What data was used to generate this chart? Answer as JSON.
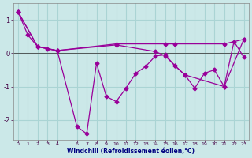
{
  "xlabel": "Windchill (Refroidissement éolien,°C)",
  "background_color": "#cbe8e8",
  "grid_color": "#aad4d4",
  "line_color": "#990099",
  "xlim": [
    -0.5,
    23.5
  ],
  "ylim": [
    -2.6,
    1.5
  ],
  "yticks": [
    -2,
    -1,
    0,
    1
  ],
  "xticks": [
    0,
    1,
    2,
    3,
    4,
    6,
    7,
    8,
    9,
    10,
    11,
    12,
    13,
    14,
    15,
    16,
    17,
    18,
    19,
    20,
    21,
    22,
    23
  ],
  "series1_x": [
    0,
    1,
    2,
    3,
    4,
    6,
    7,
    8,
    9,
    10,
    11,
    12,
    13,
    14,
    15,
    16,
    17,
    18,
    19,
    20,
    21,
    22,
    23
  ],
  "series1_y": [
    1.25,
    0.55,
    0.2,
    0.13,
    0.08,
    -2.2,
    -2.42,
    -0.3,
    -1.3,
    -1.45,
    -1.05,
    -0.6,
    -0.4,
    -0.08,
    -0.05,
    -0.38,
    -0.65,
    -1.05,
    -0.6,
    -0.5,
    -1.0,
    0.35,
    -0.12
  ],
  "series2_x": [
    0,
    2,
    4,
    10,
    15,
    16,
    21,
    23
  ],
  "series2_y": [
    1.25,
    0.2,
    0.08,
    0.28,
    0.28,
    0.28,
    0.28,
    0.42
  ],
  "series3_x": [
    0,
    2,
    4,
    10,
    14,
    15,
    16,
    17,
    21,
    23
  ],
  "series3_y": [
    1.25,
    0.2,
    0.08,
    0.25,
    0.05,
    -0.08,
    -0.38,
    -0.65,
    -1.0,
    0.42
  ]
}
